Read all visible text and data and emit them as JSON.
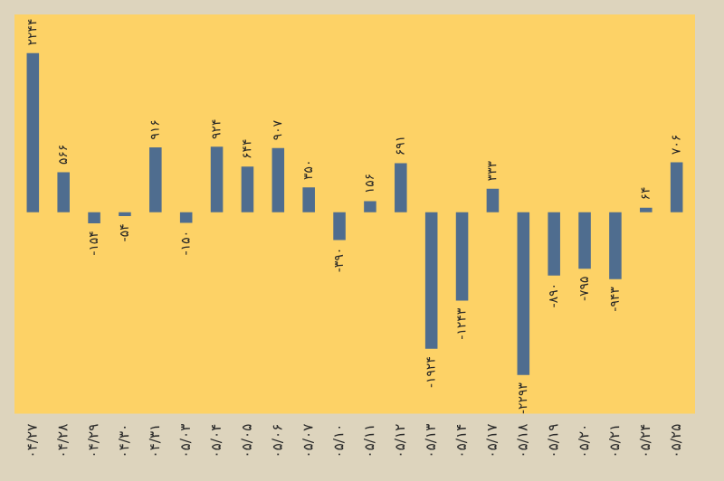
{
  "chart_data": {
    "type": "bar",
    "categories": [
      "۰۴/۲۷",
      "۰۴/۲۸",
      "۰۴/۲۹",
      "۰۴/۳۰",
      "۰۴/۳۱",
      "۰۵/۰۳",
      "۰۵/۰۴",
      "۰۵/۰۵",
      "۰۵/۰۶",
      "۰۵/۰۷",
      "۰۵/۱۰",
      "۰۵/۱۱",
      "۰۵/۱۲",
      "۰۵/۱۳",
      "۰۵/۱۴",
      "۰۵/۱۷",
      "۰۵/۱۸",
      "۰۵/۱۹",
      "۰۵/۲۰",
      "۰۵/۲۱",
      "۰۵/۲۴",
      "۰۵/۲۵"
    ],
    "values": [
      2244,
      566,
      -154,
      -54,
      916,
      -150,
      924,
      644,
      907,
      350,
      -390,
      156,
      691,
      -1924,
      -1243,
      333,
      -2293,
      -890,
      -795,
      -943,
      64,
      706
    ],
    "color": "#4f6d8f",
    "value_labels": [
      "۲۲۴۴",
      "۵۶۶",
      "-۱۵۴",
      "-۵۴",
      "۹۱۶",
      "-۱۵۰",
      "۹۲۴",
      "۶۴۴",
      "۹۰۷",
      "۳۵۰",
      "-۳۹۰",
      "۱۵۶",
      "۶۹۱",
      "-۱۹۲۴",
      "-۱۲۴۳",
      "۳۳۳",
      "-۲۲۹۳",
      "-۸۹۰",
      "-۷۹۵",
      "-۹۴۳",
      "۶۴",
      "۷۰۶"
    ],
    "tick_labels": "x",
    "grid": false
  }
}
